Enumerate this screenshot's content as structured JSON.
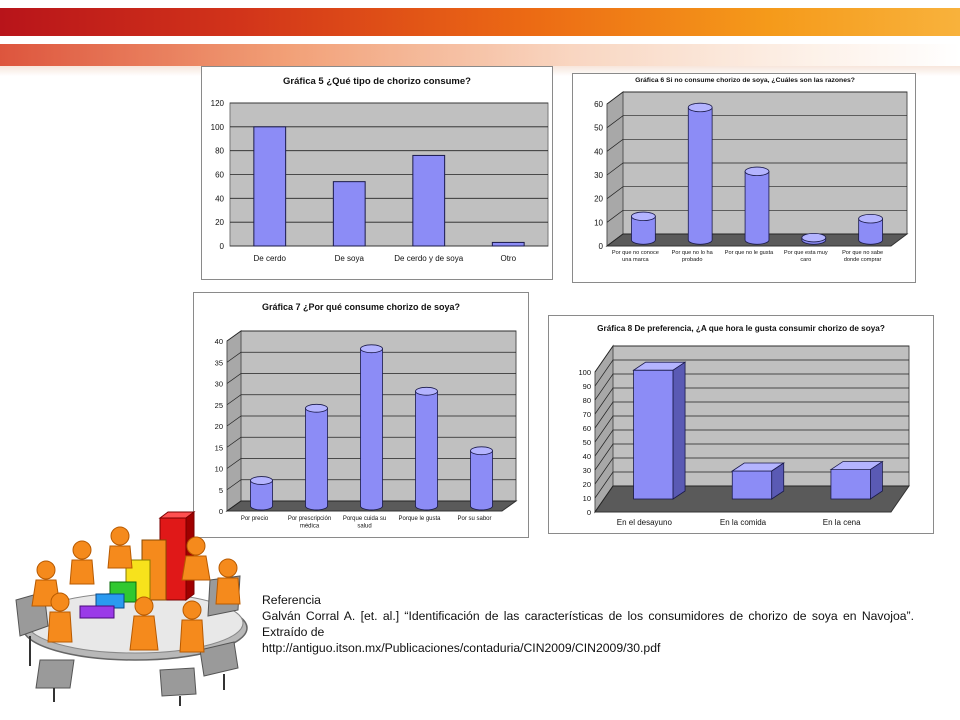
{
  "colors": {
    "bar_face": "#8c8cf6",
    "bar_side": "#5a5ab4",
    "bar_top": "#b4b4ff",
    "plot_bg": "#c0c0c0",
    "floor": "#5a5a5a",
    "banner_red": "#c0141a",
    "banner_orange": "#f39a1c"
  },
  "chart_data": [
    {
      "id": "g5",
      "type": "bar",
      "title": "Gráfica 5 ¿Qué tipo de chorizo consume?",
      "categories": [
        "De cerdo",
        "De soya",
        "De cerdo y de soya",
        "Otro"
      ],
      "values": [
        100,
        54,
        76,
        3
      ],
      "ylim": [
        0,
        120
      ],
      "yticks": [
        0,
        20,
        40,
        60,
        80,
        100,
        120
      ],
      "xlabel": "",
      "ylabel": "",
      "grid": true,
      "legend": "none"
    },
    {
      "id": "g6",
      "type": "bar",
      "title": "Gráfica 6 Si no consume chorizo de soya, ¿Cuáles son las razones?",
      "categories": [
        [
          "Por que no conoce",
          "una marca"
        ],
        [
          "Por que no lo ha",
          "probado"
        ],
        [
          "Por que no le gusta"
        ],
        [
          "Por que esta muy",
          "caro"
        ],
        [
          "Por que no sabe",
          "donde comprar"
        ]
      ],
      "values": [
        10,
        56,
        29,
        1,
        9
      ],
      "ylim": [
        0,
        60
      ],
      "yticks": [
        0,
        10,
        20,
        30,
        40,
        50,
        60
      ],
      "xlabel": "",
      "ylabel": "",
      "grid": true,
      "legend": "none",
      "style": "3d-cylinder"
    },
    {
      "id": "g7",
      "type": "bar",
      "title": "Gráfica 7 ¿Por qué consume chorizo de soya?",
      "categories": [
        [
          "Por precio"
        ],
        [
          "Por prescripción",
          "médica"
        ],
        [
          "Porque cuida su",
          "salud"
        ],
        [
          "Porque le gusta"
        ],
        [
          "Por su sabor"
        ]
      ],
      "values": [
        6,
        23,
        37,
        27,
        13
      ],
      "ylim": [
        0,
        40
      ],
      "yticks": [
        0,
        5,
        10,
        15,
        20,
        25,
        30,
        35,
        40
      ],
      "xlabel": "",
      "ylabel": "",
      "grid": true,
      "legend": "none",
      "style": "3d-cylinder"
    },
    {
      "id": "g8",
      "type": "bar",
      "title": "Gráfica 8  De preferencia, ¿A que hora le gusta consumir  chorizo de soya?",
      "categories": [
        [
          "En el desayuno"
        ],
        [
          "En la comida"
        ],
        [
          "En la cena"
        ]
      ],
      "values": [
        92,
        20,
        21
      ],
      "ylim": [
        0,
        100
      ],
      "yticks": [
        0,
        10,
        20,
        30,
        40,
        50,
        60,
        70,
        80,
        90,
        100
      ],
      "xlabel": "",
      "ylabel": "",
      "grid": true,
      "legend": "none",
      "style": "3d-box"
    }
  ],
  "reference": {
    "heading": "Referencia",
    "citation": "Galván Corral A. [et. al.] “Identificación de las características de los consumidores de chorizo de soya en Navojoa”. Extraído de",
    "url": "http://antiguo.itson.mx/Publicaciones/contaduria/CIN2009/CIN2009/30.pdf"
  },
  "illustration": {
    "icon": "business-meeting-bar-chart-clipart"
  }
}
